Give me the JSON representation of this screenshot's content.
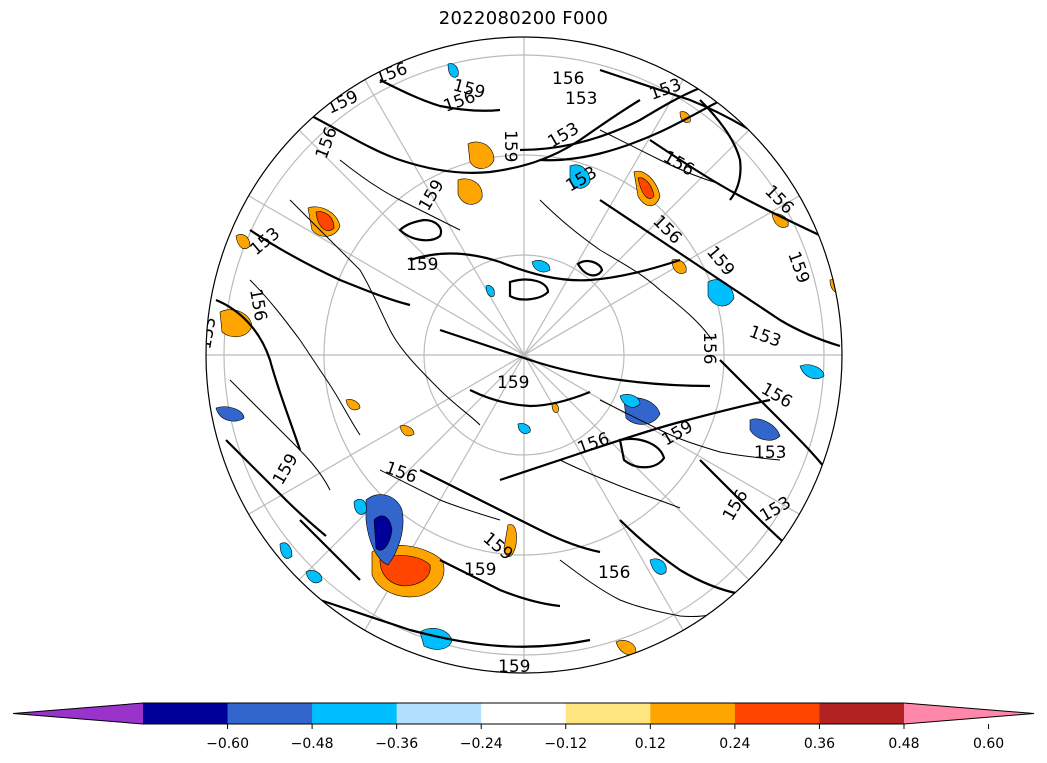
{
  "title": "2022080200 F000",
  "colorbar": {
    "colors": [
      "#9933cc",
      "#000099",
      "#3366cc",
      "#00bfff",
      "#b3e0ff",
      "#ffffff",
      "#ffe680",
      "#ffa500",
      "#ff4500",
      "#b22222",
      "#ff88aa"
    ],
    "tick_labels": [
      "−0.60",
      "−0.48",
      "−0.36",
      "−0.24",
      "−0.12",
      "0.12",
      "0.24",
      "0.36",
      "0.48",
      "0.60"
    ],
    "extend": "both"
  },
  "contour_labels": [
    "156",
    "156",
    "159",
    "153",
    "159",
    "153",
    "156",
    "159",
    "153",
    "156",
    "159",
    "156",
    "153",
    "156",
    "156",
    "159",
    "159",
    "153",
    "159",
    "156",
    "153",
    "156",
    "153",
    "156",
    "159",
    "156",
    "159",
    "153",
    "156",
    "159",
    "156",
    "153",
    "159",
    "159",
    "156",
    "159"
  ]
}
